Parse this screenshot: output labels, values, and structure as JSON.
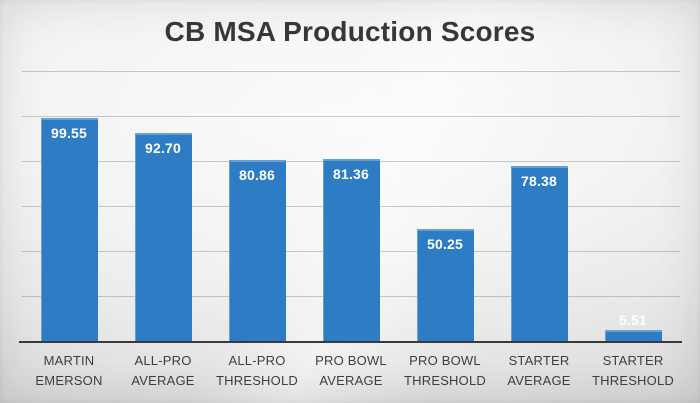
{
  "chart_data": {
    "type": "bar",
    "title": "CB MSA Production Scores",
    "categories": [
      "MARTIN EMERSON",
      "ALL-PRO AVERAGE",
      "ALL-PRO THRESHOLD",
      "PRO BOWL AVERAGE",
      "PRO BOWL THRESHOLD",
      "STARTER AVERAGE",
      "STARTER THRESHOLD"
    ],
    "category_lines": [
      [
        "MARTIN",
        "EMERSON"
      ],
      [
        "ALL-PRO",
        "AVERAGE"
      ],
      [
        "ALL-PRO",
        "THRESHOLD"
      ],
      [
        "PRO BOWL",
        "AVERAGE"
      ],
      [
        "PRO BOWL",
        "THRESHOLD"
      ],
      [
        "STARTER",
        "AVERAGE"
      ],
      [
        "STARTER",
        "THRESHOLD"
      ]
    ],
    "values": [
      99.55,
      92.7,
      80.86,
      81.36,
      50.25,
      78.38,
      5.51
    ],
    "value_labels": [
      "99.55",
      "92.70",
      "80.86",
      "81.36",
      "50.25",
      "78.38",
      "5.51"
    ],
    "xlabel": "",
    "ylabel": "",
    "ylim": [
      0,
      120
    ],
    "grid_interval": 20,
    "gridline_values": [
      20,
      40,
      60,
      80,
      100,
      120
    ],
    "grid": "horizontal-only",
    "legend_position": "none",
    "y_axis_tick_labels_visible": false,
    "colors": {
      "bar": "#2e7cc3",
      "value_label": "#ffffff",
      "category_label": "#3f3f3f",
      "title": "#383838",
      "gridline": "#8e8e8e",
      "axis_line": "#3a3a3a"
    }
  }
}
